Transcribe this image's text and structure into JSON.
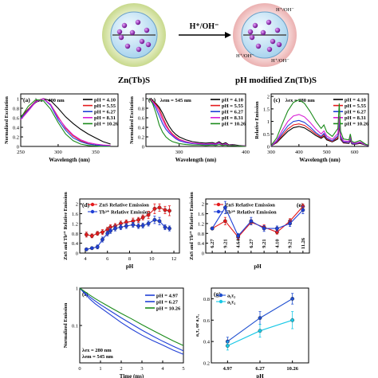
{
  "schematic": {
    "left_label": "Zn(Tb)S",
    "right_label": "pH modified Zn(Tb)S",
    "arrow_label": "H⁺/OH⁻",
    "ion_labels": [
      "H⁺/OH⁻",
      "H⁺/OH⁻",
      "H⁺/OH⁻"
    ]
  },
  "colors": {
    "pH 4.10": "#000000",
    "pH 5.55": "#e41a1c",
    "pH 6.27": "#1f3fd6",
    "pH 8.31": "#d81bd4",
    "pH 10.26": "#1a8a1a",
    "pH 4.97": "#1f3fd6",
    "ZnS": "#e41a1c",
    "Tb": "#1f3fd6",
    "g_a2t2": "#1f4fd0",
    "g_a1t1": "#17c8e6"
  },
  "chart_data": [
    {
      "panel": "(a)",
      "type": "line",
      "annotation": "λex = 400 nm",
      "xlabel": "Wavelength (nm)",
      "ylabel": "Normalized Excitation",
      "xlim": [
        250,
        380
      ],
      "ylim": [
        0,
        1.1
      ],
      "xticks": [
        250,
        300,
        350
      ],
      "yticks": [
        0.0,
        0.2,
        0.4,
        0.6,
        0.8,
        1.0
      ],
      "x": [
        250,
        260,
        270,
        280,
        290,
        300,
        310,
        320,
        330,
        340,
        350,
        360,
        370
      ],
      "series": [
        {
          "name": "pH = 4.10",
          "values": [
            0.62,
            0.78,
            0.92,
            1.0,
            0.96,
            0.8,
            0.62,
            0.48,
            0.36,
            0.26,
            0.18,
            0.1,
            0.05
          ]
        },
        {
          "name": "pH = 5.55",
          "values": [
            0.6,
            0.78,
            0.95,
            1.0,
            0.88,
            0.62,
            0.38,
            0.22,
            0.12,
            0.06,
            0.03,
            0.02,
            0.01
          ]
        },
        {
          "name": "pH = 6.27",
          "values": [
            0.58,
            0.76,
            0.94,
            1.0,
            0.86,
            0.56,
            0.34,
            0.18,
            0.1,
            0.05,
            0.03,
            0.02,
            0.01
          ]
        },
        {
          "name": "pH = 8.31",
          "values": [
            0.56,
            0.74,
            0.93,
            1.0,
            0.88,
            0.6,
            0.4,
            0.24,
            0.14,
            0.08,
            0.05,
            0.03,
            0.02
          ]
        },
        {
          "name": "pH = 10.26",
          "values": [
            0.6,
            0.84,
            0.98,
            0.96,
            0.78,
            0.5,
            0.26,
            0.12,
            0.05,
            0.02,
            0.01,
            0.0,
            0.0
          ]
        }
      ]
    },
    {
      "panel": "(b)",
      "type": "line",
      "annotation": "λem = 545 nm",
      "xlabel": "Wavelength (nm)",
      "ylabel": "Normalized Excitation",
      "xlim": [
        250,
        400
      ],
      "ylim": [
        0,
        1.1
      ],
      "xticks": [
        300,
        400
      ],
      "yticks": [
        0.0,
        0.2,
        0.4,
        0.6,
        0.8,
        1.0
      ],
      "x": [
        255,
        260,
        265,
        270,
        275,
        280,
        285,
        290,
        295,
        300,
        310,
        320,
        330,
        340,
        350,
        355,
        360,
        365,
        370,
        375,
        380,
        390,
        400
      ],
      "series": [
        {
          "name": "pH = 4.10",
          "values": [
            1.0,
            0.96,
            0.9,
            0.82,
            0.7,
            0.55,
            0.42,
            0.32,
            0.25,
            0.2,
            0.14,
            0.1,
            0.08,
            0.07,
            0.08,
            0.06,
            0.1,
            0.05,
            0.08,
            0.03,
            0.04,
            0.02,
            0.01
          ]
        },
        {
          "name": "pH = 5.55",
          "values": [
            1.0,
            0.95,
            0.88,
            0.78,
            0.62,
            0.46,
            0.34,
            0.26,
            0.2,
            0.15,
            0.1,
            0.07,
            0.05,
            0.04,
            0.05,
            0.04,
            0.07,
            0.03,
            0.05,
            0.02,
            0.03,
            0.01,
            0.01
          ]
        },
        {
          "name": "pH = 6.27",
          "values": [
            1.0,
            0.92,
            0.8,
            0.64,
            0.48,
            0.36,
            0.28,
            0.22,
            0.16,
            0.12,
            0.08,
            0.06,
            0.05,
            0.04,
            0.05,
            0.04,
            0.07,
            0.03,
            0.05,
            0.02,
            0.03,
            0.01,
            0.01
          ]
        },
        {
          "name": "pH = 8.31",
          "values": [
            1.0,
            0.94,
            0.85,
            0.72,
            0.56,
            0.42,
            0.32,
            0.24,
            0.18,
            0.14,
            0.1,
            0.07,
            0.06,
            0.05,
            0.06,
            0.05,
            0.08,
            0.03,
            0.06,
            0.02,
            0.03,
            0.01,
            0.01
          ]
        },
        {
          "name": "pH = 10.26",
          "values": [
            1.0,
            0.9,
            0.7,
            0.45,
            0.3,
            0.2,
            0.14,
            0.1,
            0.08,
            0.06,
            0.04,
            0.03,
            0.03,
            0.02,
            0.03,
            0.02,
            0.04,
            0.02,
            0.03,
            0.01,
            0.02,
            0.01,
            0.0
          ]
        }
      ]
    },
    {
      "panel": "(c)",
      "type": "line",
      "annotation": "λex = 280 nm",
      "xlabel": "Wavelength (nm)",
      "ylabel": "Relative Emission",
      "xlim": [
        300,
        650
      ],
      "ylim": [
        0,
        2.1
      ],
      "xticks": [
        300,
        400,
        500,
        600
      ],
      "yticks": [
        0.0,
        0.5,
        1.0,
        1.5,
        2.0
      ],
      "x": [
        300,
        320,
        340,
        360,
        380,
        400,
        420,
        440,
        460,
        480,
        490,
        500,
        520,
        540,
        545,
        550,
        560,
        580,
        585,
        590,
        600,
        620,
        640,
        650
      ],
      "series": [
        {
          "name": "pH = 4.10",
          "values": [
            0.02,
            0.15,
            0.38,
            0.6,
            0.75,
            0.8,
            0.74,
            0.6,
            0.44,
            0.32,
            0.4,
            0.26,
            0.18,
            0.3,
            0.85,
            0.28,
            0.14,
            0.12,
            0.24,
            0.1,
            0.08,
            0.12,
            0.05,
            0.03
          ]
        },
        {
          "name": "pH = 5.55",
          "values": [
            0.02,
            0.17,
            0.44,
            0.7,
            0.86,
            0.9,
            0.84,
            0.68,
            0.5,
            0.36,
            0.46,
            0.3,
            0.2,
            0.36,
            0.9,
            0.32,
            0.16,
            0.14,
            0.28,
            0.12,
            0.09,
            0.14,
            0.06,
            0.03
          ]
        },
        {
          "name": "pH = 6.27",
          "values": [
            0.02,
            0.2,
            0.52,
            0.82,
            1.0,
            1.04,
            0.96,
            0.78,
            0.56,
            0.4,
            0.52,
            0.34,
            0.22,
            0.42,
            1.02,
            0.36,
            0.18,
            0.16,
            0.32,
            0.13,
            0.1,
            0.16,
            0.06,
            0.03
          ]
        },
        {
          "name": "pH = 8.31",
          "values": [
            0.03,
            0.24,
            0.64,
            1.0,
            1.22,
            1.28,
            1.18,
            0.96,
            0.7,
            0.5,
            0.62,
            0.42,
            0.28,
            0.52,
            1.2,
            0.44,
            0.22,
            0.2,
            0.38,
            0.16,
            0.12,
            0.18,
            0.07,
            0.04
          ]
        },
        {
          "name": "pH = 10.26",
          "values": [
            0.04,
            0.34,
            0.9,
            1.42,
            1.76,
            1.86,
            1.72,
            1.4,
            1.02,
            0.72,
            0.86,
            0.58,
            0.4,
            0.72,
            1.72,
            0.6,
            0.3,
            0.26,
            0.5,
            0.2,
            0.16,
            0.24,
            0.09,
            0.05
          ]
        }
      ]
    },
    {
      "panel": "(d)",
      "type": "line",
      "xlabel": "pH",
      "ylabel": "ZnS and Tb³⁺ Relative Emission",
      "xlim": [
        3.5,
        12.5
      ],
      "ylim": [
        0.0,
        2.2
      ],
      "xticks": [
        4,
        6,
        8,
        10,
        12
      ],
      "yticks": [
        0.0,
        0.4,
        0.8,
        1.2,
        1.6,
        2.0
      ],
      "series": [
        {
          "name": "ZnS Relative Emission",
          "x": [
            4.1,
            4.6,
            5.1,
            5.55,
            6.0,
            6.27,
            6.7,
            7.2,
            7.7,
            8.31,
            8.8,
            9.2,
            9.7,
            10.26,
            10.7,
            11.2,
            11.6
          ],
          "values": [
            0.75,
            0.7,
            0.8,
            0.85,
            0.95,
            1.05,
            1.1,
            1.2,
            1.25,
            1.3,
            1.35,
            1.45,
            1.55,
            1.8,
            1.85,
            1.75,
            1.72
          ],
          "errors": [
            0.1,
            0.08,
            0.08,
            0.1,
            0.1,
            0.1,
            0.1,
            0.1,
            0.1,
            0.12,
            0.1,
            0.1,
            0.15,
            0.2,
            0.15,
            0.15,
            0.2
          ]
        },
        {
          "name": "Tb³⁺ Relative Emission",
          "x": [
            4.1,
            4.6,
            5.1,
            5.55,
            6.0,
            6.27,
            6.7,
            7.2,
            7.7,
            8.31,
            8.8,
            9.2,
            9.7,
            10.26,
            10.7,
            11.2,
            11.6
          ],
          "values": [
            0.15,
            0.2,
            0.25,
            0.55,
            0.8,
            0.9,
            1.0,
            1.05,
            1.1,
            1.15,
            1.1,
            1.12,
            1.2,
            1.35,
            1.3,
            1.05,
            1.0
          ],
          "errors": [
            0.05,
            0.05,
            0.08,
            0.1,
            0.1,
            0.1,
            0.1,
            0.1,
            0.1,
            0.1,
            0.1,
            0.1,
            0.1,
            0.15,
            0.15,
            0.1,
            0.1
          ]
        }
      ]
    },
    {
      "panel": "(e)",
      "type": "line",
      "xlabel": "pH",
      "ylabel": "ZnS and Tb³⁺ Relative Emission",
      "ylim": [
        0.0,
        2.2
      ],
      "yticks": [
        0.0,
        0.4,
        0.8,
        1.2,
        1.6,
        2.0
      ],
      "categories": [
        "6.27",
        "9.21",
        "4.64",
        "6.27",
        "9.21",
        "4.10",
        "9.21",
        "11.26"
      ],
      "series": [
        {
          "name": "ZnS Relative Emission",
          "values": [
            1.0,
            1.3,
            0.65,
            1.25,
            1.05,
            0.85,
            1.3,
            1.9
          ],
          "errors": [
            0.05,
            0.15,
            0.08,
            0.1,
            0.1,
            0.08,
            0.1,
            0.1
          ]
        },
        {
          "name": "Tb³⁺ Relative Emission",
          "values": [
            1.0,
            1.85,
            0.7,
            1.3,
            1.0,
            1.0,
            1.2,
            1.75
          ],
          "errors": [
            0.05,
            0.25,
            0.1,
            0.15,
            0.12,
            0.1,
            0.12,
            0.15
          ]
        }
      ]
    },
    {
      "panel": "(f)",
      "type": "line",
      "annotation": [
        "λex = 280 nm",
        "λem = 545 nm"
      ],
      "xlabel": "Time (ms)",
      "ylabel": "Normalized Emission",
      "xlim": [
        0,
        5
      ],
      "ylim": [
        0.01,
        1
      ],
      "yscale": "log",
      "xticks": [
        0,
        1,
        2,
        3,
        4,
        5
      ],
      "yticks": [
        0.1,
        1
      ],
      "x": [
        0,
        0.25,
        0.5,
        0.75,
        1,
        1.5,
        2,
        2.5,
        3,
        3.5,
        4,
        4.5,
        5
      ],
      "series": [
        {
          "name": "pH = 4.97",
          "values": [
            1.0,
            0.7,
            0.5,
            0.38,
            0.3,
            0.19,
            0.12,
            0.08,
            0.055,
            0.04,
            0.03,
            0.022,
            0.017
          ]
        },
        {
          "name": "pH = 6.27",
          "values": [
            1.0,
            0.75,
            0.57,
            0.45,
            0.36,
            0.24,
            0.16,
            0.11,
            0.075,
            0.053,
            0.038,
            0.028,
            0.021
          ]
        },
        {
          "name": "pH = 10.26",
          "values": [
            1.0,
            0.8,
            0.64,
            0.52,
            0.43,
            0.3,
            0.21,
            0.15,
            0.105,
            0.075,
            0.054,
            0.039,
            0.029
          ]
        }
      ]
    },
    {
      "panel": "(g)",
      "type": "line",
      "xlabel": "pH",
      "ylabel": "a₂τ₂ or a₁τ₁",
      "ylim": [
        0.2,
        0.9
      ],
      "yticks": [
        0.2,
        0.4,
        0.6,
        0.8
      ],
      "categories": [
        "4.97",
        "6.27",
        "10.26"
      ],
      "series": [
        {
          "name": "a₂τ₂",
          "values": [
            0.4,
            0.62,
            0.8
          ],
          "errors": [
            0.04,
            0.06,
            0.05
          ]
        },
        {
          "name": "a₁τ₁",
          "values": [
            0.36,
            0.5,
            0.6
          ],
          "errors": [
            0.04,
            0.06,
            0.08
          ]
        }
      ]
    }
  ]
}
